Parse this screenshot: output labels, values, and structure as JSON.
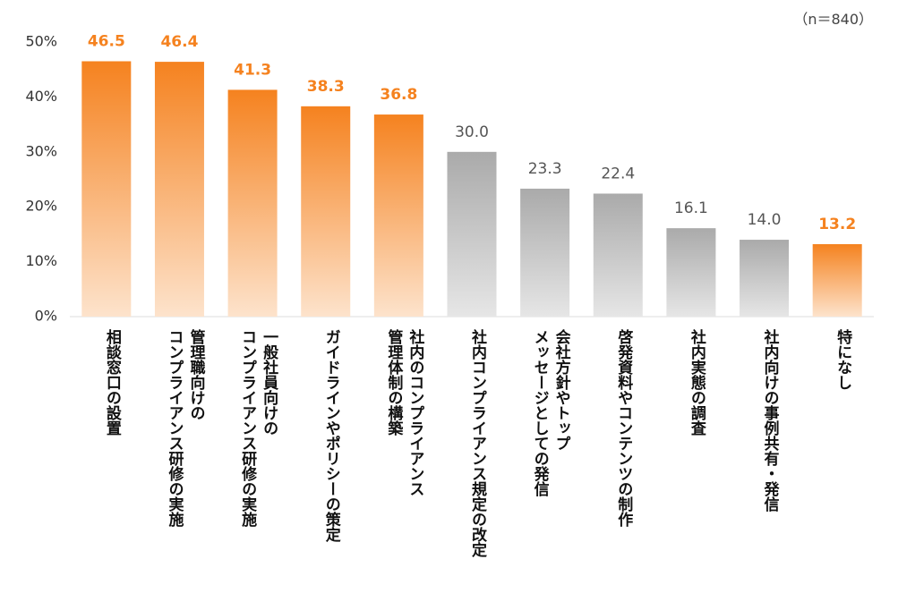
{
  "chart_data": {
    "type": "bar",
    "note": "（n＝840）",
    "categories": [
      "相談窓口の設置",
      "管理職向けの\nコンプライアンス研修の実施",
      "一般社員向けの\nコンプライアンス研修の実施",
      "ガイドラインやポリシーの策定",
      "社内のコンプライアンス\n管理体制の構築",
      "社内コンプライアンス規定の改定",
      "会社方針やトップ\nメッセージとしての発信",
      "啓発資料やコンテンツの制作",
      "社内実態の調査",
      "社内向けの事例共有・発信",
      "特になし"
    ],
    "values": [
      46.5,
      46.4,
      41.3,
      38.3,
      36.8,
      30.0,
      23.3,
      22.4,
      16.1,
      14.0,
      13.2
    ],
    "value_labels": [
      "46.5",
      "46.4",
      "41.3",
      "38.3",
      "36.8",
      "30.0",
      "23.3",
      "22.4",
      "16.1",
      "14.0",
      "13.2"
    ],
    "colors": [
      "#f5821f",
      "#f5821f",
      "#f5821f",
      "#f5821f",
      "#f5821f",
      "#aaaaaa",
      "#aaaaaa",
      "#aaaaaa",
      "#aaaaaa",
      "#aaaaaa",
      "#f5821f"
    ],
    "ylim": [
      0,
      50
    ],
    "yticks": [
      {
        "value": 0,
        "label": "0%"
      },
      {
        "value": 10,
        "label": "10%"
      },
      {
        "value": 20,
        "label": "20%"
      },
      {
        "value": 30,
        "label": "30%"
      },
      {
        "value": 40,
        "label": "40%"
      },
      {
        "value": 50,
        "label": "50%"
      }
    ],
    "grid": false
  }
}
